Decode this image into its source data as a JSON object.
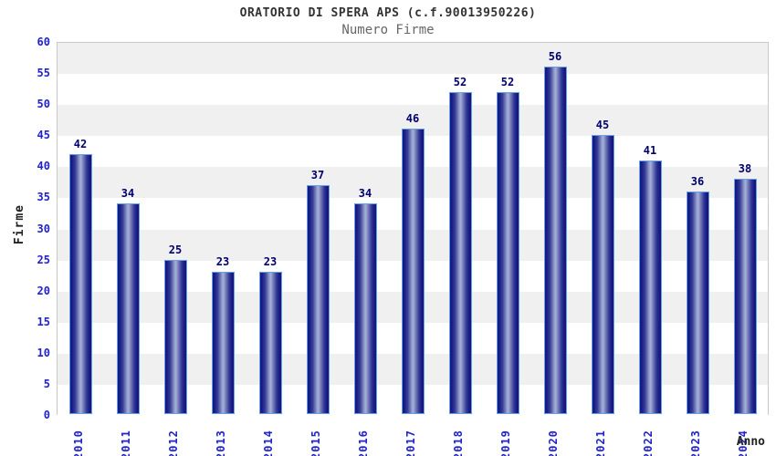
{
  "header": {
    "title": "ORATORIO DI SPERA APS (c.f.90013950226)",
    "subtitle": "Numero Firme"
  },
  "chart_data": {
    "type": "bar",
    "title": "ORATORIO DI SPERA APS (c.f.90013950226)",
    "subtitle": "Numero Firme",
    "xlabel": "Anno",
    "ylabel": "Firme",
    "categories": [
      "2010",
      "2011",
      "2012",
      "2013",
      "2014",
      "2015",
      "2016",
      "2017",
      "2018",
      "2019",
      "2020",
      "2021",
      "2022",
      "2023",
      "2024"
    ],
    "values": [
      42,
      34,
      25,
      23,
      23,
      37,
      34,
      46,
      52,
      52,
      56,
      45,
      41,
      36,
      38
    ],
    "ylim": [
      0,
      60
    ],
    "ytick_step": 5,
    "grid": "alternating-horizontal-bands",
    "legend": "none",
    "colors": {
      "bar_dark": "#14167c",
      "bar_light": "#a9b1d8",
      "bar_border": "#64a2e8",
      "tick_label": "#2222cc",
      "value_label": "#000070",
      "band_gray": "#f0f0f0",
      "band_white": "#ffffff",
      "plot_border": "#c9c9c9",
      "title_color": "#333333",
      "subtitle_color": "#666666"
    }
  }
}
